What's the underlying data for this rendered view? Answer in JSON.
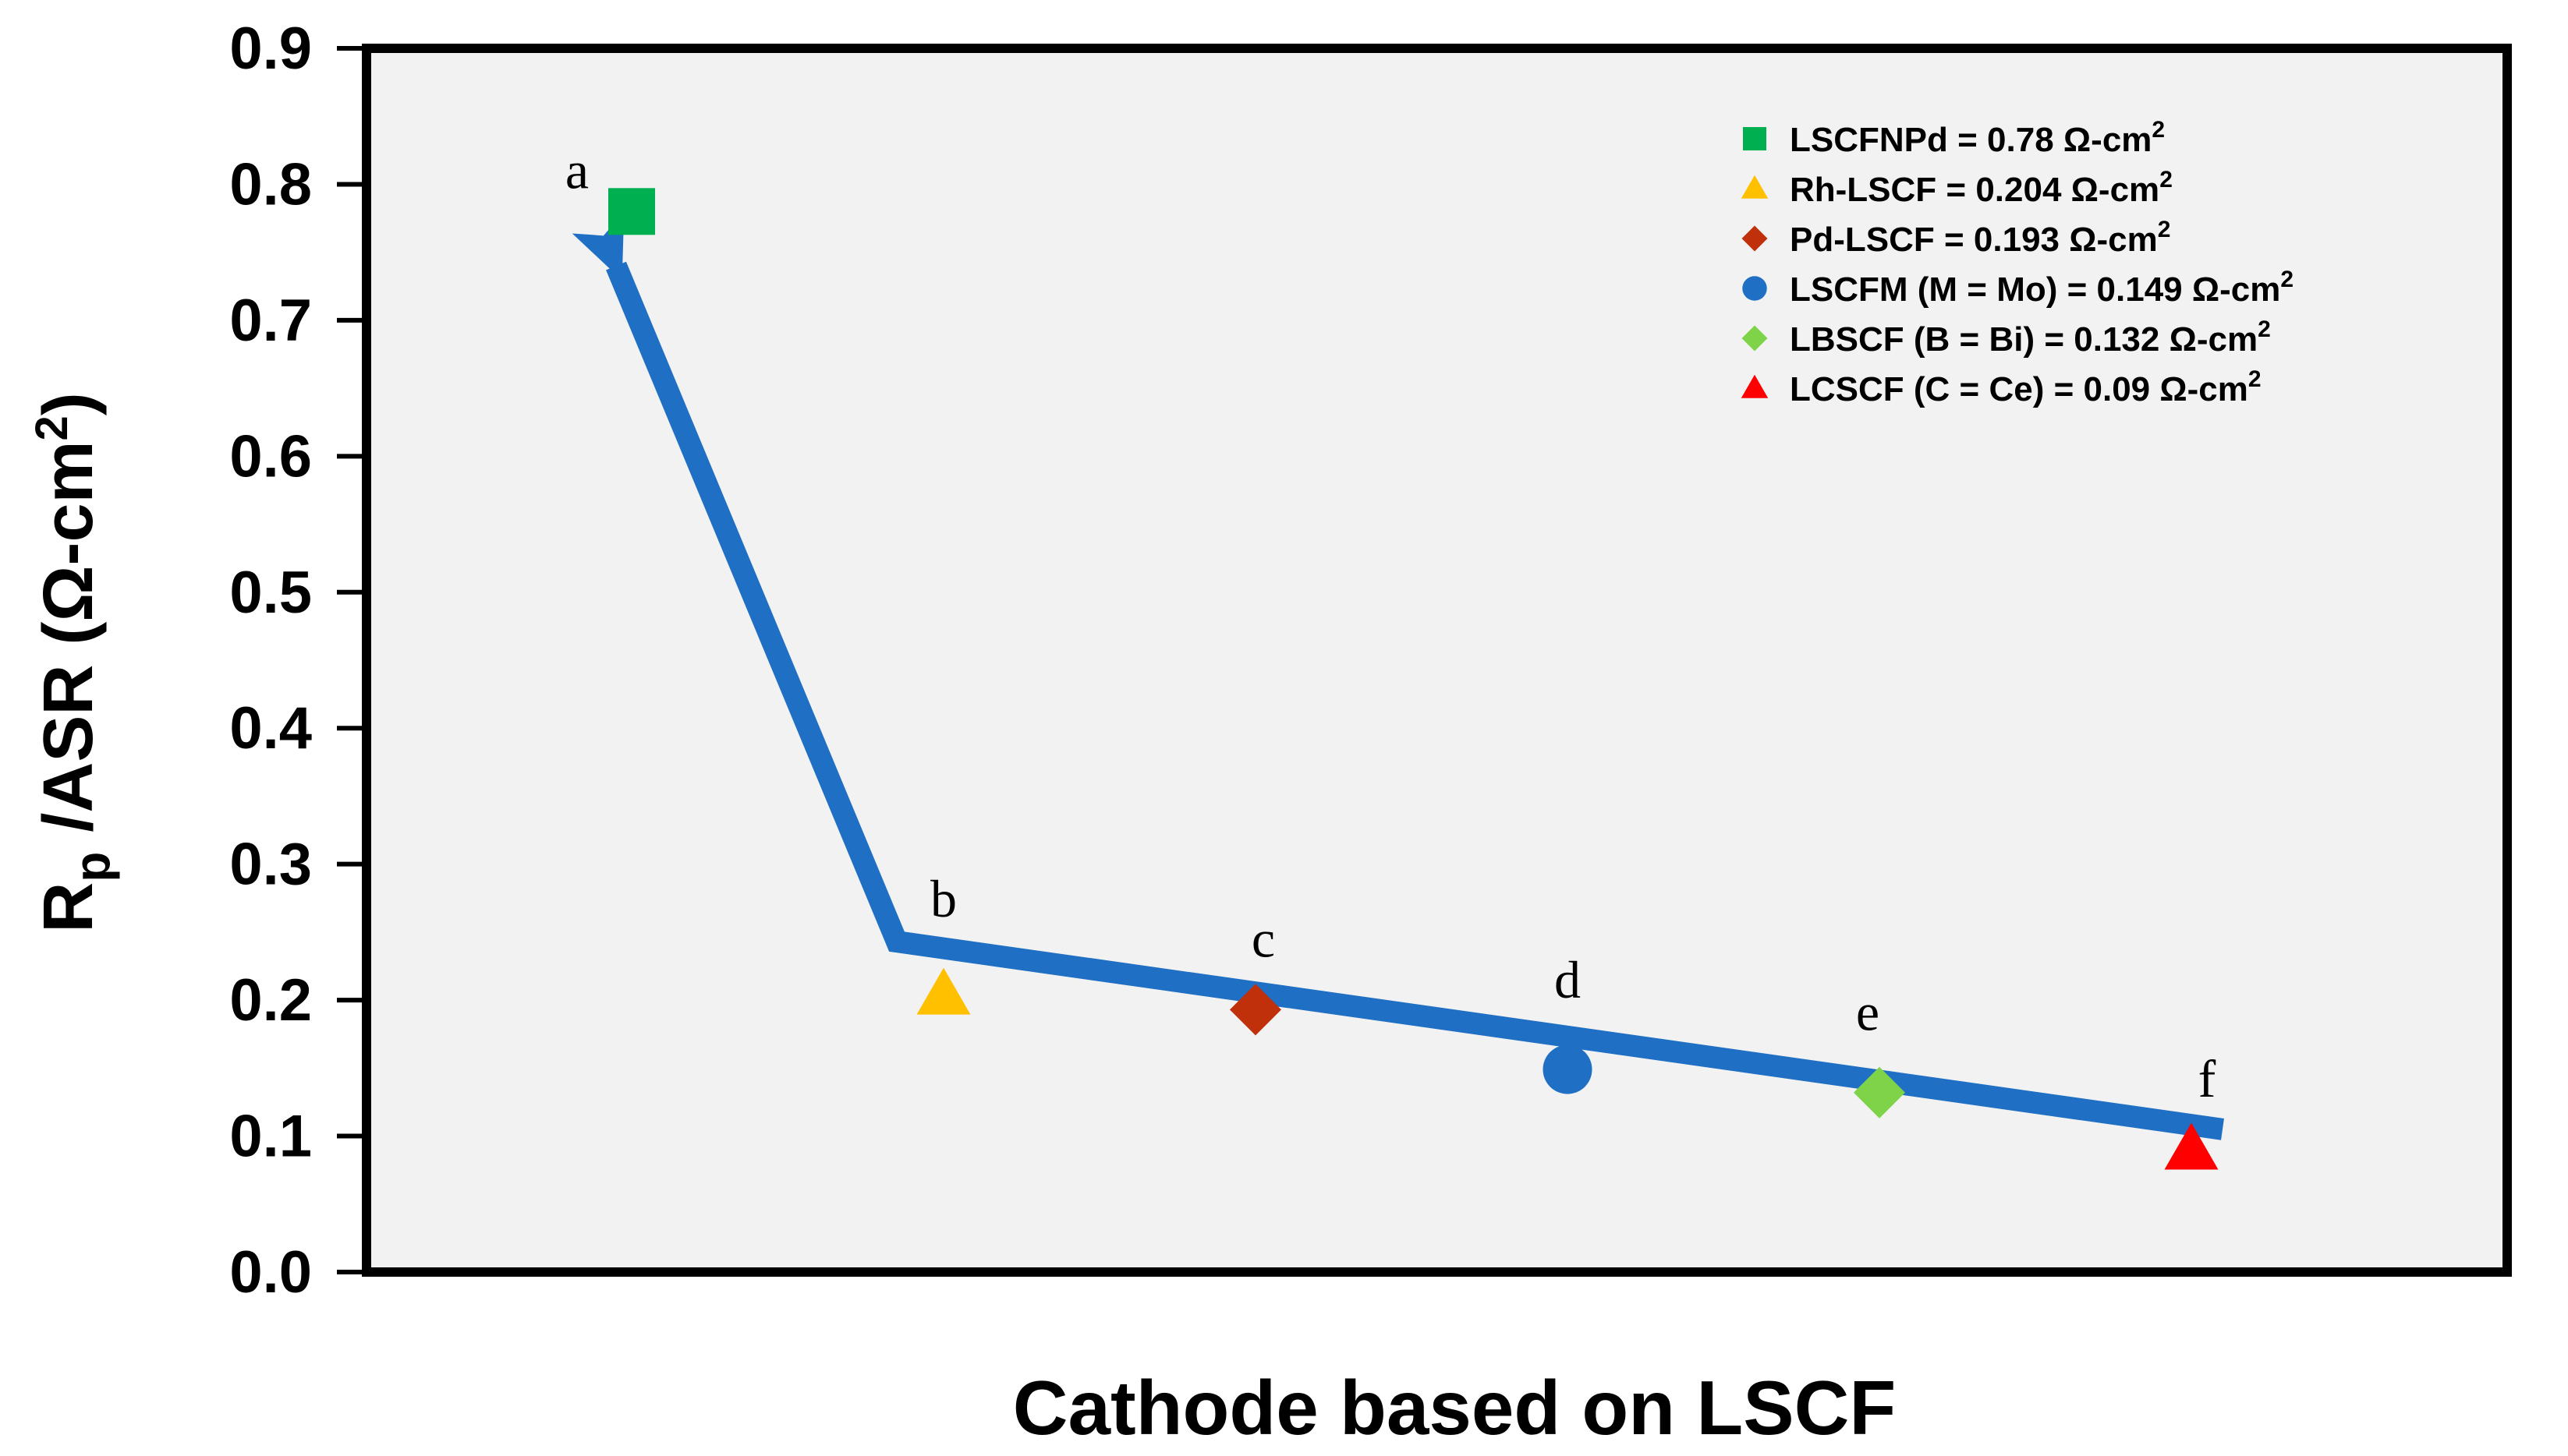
{
  "chart_data": {
    "type": "scatter",
    "xlabel": "Cathode based on LSCF",
    "ylabel": {
      "main": "R",
      "sub": "p",
      "rest": " /ASR (Ω-cm",
      "sup": "2",
      "close": ")"
    },
    "ylim": [
      0.0,
      0.9
    ],
    "yticks": [
      "0.0",
      "0.1",
      "0.2",
      "0.3",
      "0.4",
      "0.5",
      "0.6",
      "0.7",
      "0.8",
      "0.9"
    ],
    "legend_position": "top-right",
    "grid": false,
    "background": "#f2f2f2",
    "points": [
      {
        "label": "a",
        "x": 1,
        "y": 0.78,
        "marker": "square",
        "color": "#00b050",
        "legend": "LSCFNPd = 0.78 Ω-cm",
        "legend_sup": "2"
      },
      {
        "label": "b",
        "x": 2,
        "y": 0.204,
        "marker": "triangle",
        "color": "#ffc000",
        "legend": "Rh-LSCF =  0.204 Ω-cm",
        "legend_sup": "2"
      },
      {
        "label": "c",
        "x": 3,
        "y": 0.193,
        "marker": "diamond",
        "color": "#c0300a",
        "legend": "Pd-LSCF  = 0.193 Ω-cm",
        "legend_sup": "2"
      },
      {
        "label": "d",
        "x": 4,
        "y": 0.149,
        "marker": "circle",
        "color": "#1f6fc5",
        "legend": "LSCFM (M = Mo) = 0.149 Ω-cm",
        "legend_sup": "2"
      },
      {
        "label": "e",
        "x": 5,
        "y": 0.132,
        "marker": "diamond",
        "color": "#7ed348",
        "legend": "LBSCF (B = Bi) = 0.132 Ω-cm",
        "legend_sup": "2"
      },
      {
        "label": "f",
        "x": 6,
        "y": 0.09,
        "marker": "triangle",
        "color": "#ff0000",
        "legend": "LCSCF (C = Ce) = 0.09 Ω-cm",
        "legend_sup": "2"
      }
    ],
    "trend_arrow": {
      "color": "#1f6fc5",
      "path": [
        {
          "x": 6.1,
          "y": 0.105
        },
        {
          "x": 1.85,
          "y": 0.243
        },
        {
          "x": 0.95,
          "y": 0.74
        }
      ]
    }
  }
}
